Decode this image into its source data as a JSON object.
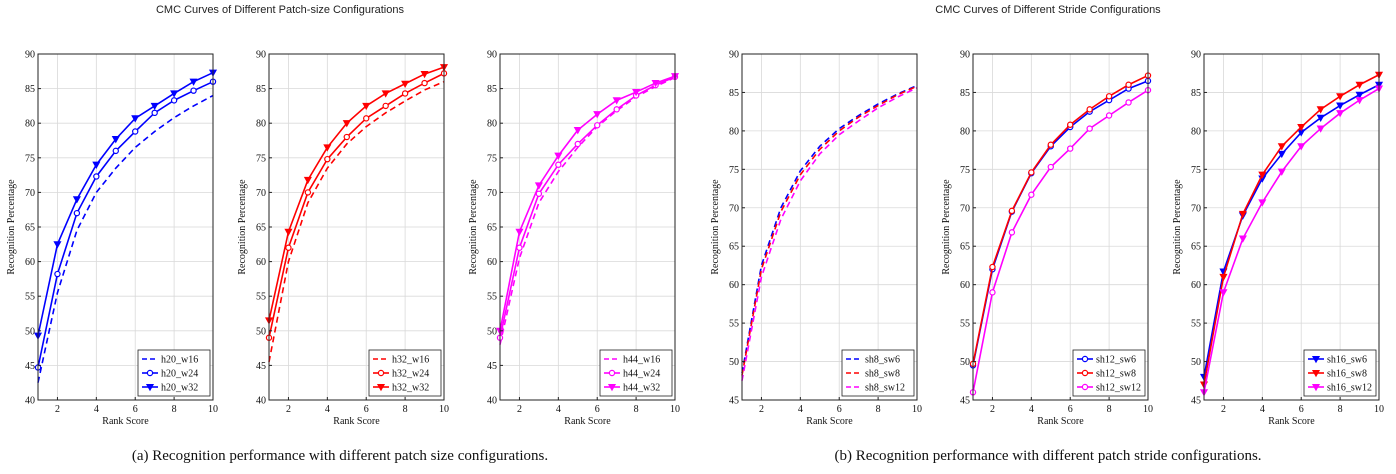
{
  "titles": {
    "left": "CMC Curves of Different Patch-size Configurations",
    "right": "CMC Curves of Different Stride Configurations"
  },
  "captions": {
    "left": "(a) Recognition performance with different patch size configurations.",
    "right": "(b) Recognition performance with different patch stride configurations."
  },
  "chart_data": [
    {
      "type": "line",
      "xlabel": "Rank Score",
      "ylabel": "Recognition Percentage",
      "xlim": [
        1,
        10
      ],
      "ylim": [
        40,
        90
      ],
      "xticks": [
        2,
        4,
        6,
        8,
        10
      ],
      "yticks": [
        40,
        45,
        50,
        55,
        60,
        65,
        70,
        75,
        80,
        85,
        90
      ],
      "grid": true,
      "legend": "bottom-right",
      "x": [
        1,
        2,
        3,
        4,
        5,
        6,
        7,
        8,
        9,
        10
      ],
      "series": [
        {
          "name": "h20_w16",
          "color": "#0000ff",
          "dash": true,
          "marker": "none",
          "values": [
            42.5,
            55.5,
            64.5,
            70.0,
            73.5,
            76.5,
            78.8,
            80.8,
            82.5,
            84.0
          ]
        },
        {
          "name": "h20_w24",
          "color": "#0000ff",
          "dash": false,
          "marker": "circle",
          "values": [
            44.7,
            58.2,
            67.0,
            72.3,
            76.0,
            78.8,
            81.5,
            83.3,
            84.7,
            86.0
          ]
        },
        {
          "name": "h20_w32",
          "color": "#0000ff",
          "dash": false,
          "marker": "triangle",
          "values": [
            49.3,
            62.5,
            69.0,
            74.0,
            77.7,
            80.7,
            82.5,
            84.3,
            86.0,
            87.3
          ]
        }
      ]
    },
    {
      "type": "line",
      "xlabel": "Rank Score",
      "ylabel": "Recognition Percentage",
      "xlim": [
        1,
        10
      ],
      "ylim": [
        40,
        90
      ],
      "xticks": [
        2,
        4,
        6,
        8,
        10
      ],
      "yticks": [
        40,
        45,
        50,
        55,
        60,
        65,
        70,
        75,
        80,
        85,
        90
      ],
      "grid": true,
      "legend": "bottom-right",
      "x": [
        1,
        2,
        3,
        4,
        5,
        6,
        7,
        8,
        9,
        10
      ],
      "series": [
        {
          "name": "h32_w16",
          "color": "#ff0000",
          "dash": true,
          "marker": "none",
          "values": [
            45.5,
            60.0,
            68.5,
            73.5,
            77.0,
            79.5,
            81.5,
            83.2,
            84.8,
            86.0
          ]
        },
        {
          "name": "h32_w24",
          "color": "#ff0000",
          "dash": false,
          "marker": "circle",
          "values": [
            49.0,
            62.0,
            70.0,
            74.8,
            78.0,
            80.7,
            82.5,
            84.3,
            85.8,
            87.2
          ]
        },
        {
          "name": "h32_w32",
          "color": "#ff0000",
          "dash": false,
          "marker": "triangle",
          "values": [
            51.5,
            64.3,
            71.8,
            76.5,
            80.0,
            82.5,
            84.3,
            85.7,
            87.1,
            88.1
          ]
        }
      ]
    },
    {
      "type": "line",
      "xlabel": "Rank Score",
      "ylabel": "Recognition Percentage",
      "xlim": [
        1,
        10
      ],
      "ylim": [
        40,
        90
      ],
      "xticks": [
        2,
        4,
        6,
        8,
        10
      ],
      "yticks": [
        40,
        45,
        50,
        55,
        60,
        65,
        70,
        75,
        80,
        85,
        90
      ],
      "grid": true,
      "legend": "bottom-right",
      "x": [
        1,
        2,
        3,
        4,
        5,
        6,
        7,
        8,
        9,
        10
      ],
      "series": [
        {
          "name": "h44_w16",
          "color": "#ff00ff",
          "dash": true,
          "marker": "none",
          "values": [
            48.0,
            60.5,
            68.5,
            73.0,
            76.5,
            79.5,
            81.8,
            83.8,
            85.3,
            86.6
          ]
        },
        {
          "name": "h44_w24",
          "color": "#ff00ff",
          "dash": false,
          "marker": "circle",
          "values": [
            49.0,
            62.0,
            69.8,
            74.0,
            77.0,
            79.7,
            82.0,
            84.0,
            85.5,
            86.7
          ]
        },
        {
          "name": "h44_w32",
          "color": "#ff00ff",
          "dash": false,
          "marker": "triangle",
          "values": [
            50.0,
            64.3,
            71.0,
            75.3,
            79.0,
            81.3,
            83.3,
            84.5,
            85.8,
            86.8
          ]
        }
      ]
    },
    {
      "type": "line",
      "xlabel": "Rank Score",
      "ylabel": "Recognition Percentage",
      "xlim": [
        1,
        10
      ],
      "ylim": [
        45,
        90
      ],
      "xticks": [
        2,
        4,
        6,
        8,
        10
      ],
      "yticks": [
        45,
        50,
        55,
        60,
        65,
        70,
        75,
        80,
        85,
        90
      ],
      "grid": true,
      "legend": "bottom-right",
      "x": [
        1,
        2,
        3,
        4,
        5,
        6,
        7,
        8,
        9,
        10
      ],
      "series": [
        {
          "name": "sh8_sw6",
          "color": "#0000ff",
          "dash": true,
          "marker": "none",
          "values": [
            48.5,
            62.5,
            70.0,
            74.8,
            78.0,
            80.3,
            82.0,
            83.5,
            84.8,
            85.9
          ]
        },
        {
          "name": "sh8_sw8",
          "color": "#ff0000",
          "dash": true,
          "marker": "none",
          "values": [
            48.2,
            62.0,
            69.5,
            74.3,
            77.6,
            80.0,
            81.8,
            83.3,
            84.7,
            85.8
          ]
        },
        {
          "name": "sh8_sw12",
          "color": "#ff00ff",
          "dash": true,
          "marker": "none",
          "values": [
            47.5,
            61.0,
            68.5,
            73.5,
            77.0,
            79.5,
            81.3,
            83.0,
            84.4,
            85.6
          ]
        }
      ]
    },
    {
      "type": "line",
      "xlabel": "Rank Score",
      "ylabel": "Recognition Percentage",
      "xlim": [
        1,
        10
      ],
      "ylim": [
        45,
        90
      ],
      "xticks": [
        2,
        4,
        6,
        8,
        10
      ],
      "yticks": [
        45,
        50,
        55,
        60,
        65,
        70,
        75,
        80,
        85,
        90
      ],
      "grid": true,
      "legend": "bottom-right",
      "x": [
        1,
        2,
        3,
        4,
        5,
        6,
        7,
        8,
        9,
        10
      ],
      "series": [
        {
          "name": "sh12_sw6",
          "color": "#0000ff",
          "dash": false,
          "marker": "circle",
          "values": [
            49.5,
            62.0,
            69.5,
            74.5,
            78.0,
            80.5,
            82.5,
            84.0,
            85.5,
            86.5
          ]
        },
        {
          "name": "sh12_sw8",
          "color": "#ff0000",
          "dash": false,
          "marker": "circle",
          "values": [
            49.7,
            62.3,
            69.6,
            74.6,
            78.2,
            80.8,
            82.8,
            84.5,
            86.0,
            87.2
          ]
        },
        {
          "name": "sh12_sw12",
          "color": "#ff00ff",
          "dash": false,
          "marker": "circle",
          "values": [
            46.0,
            59.0,
            66.8,
            71.7,
            75.3,
            77.7,
            80.3,
            82.0,
            83.7,
            85.3
          ]
        }
      ]
    },
    {
      "type": "line",
      "xlabel": "Rank Score",
      "ylabel": "Recognition Percentage",
      "xlim": [
        1,
        10
      ],
      "ylim": [
        45,
        90
      ],
      "xticks": [
        2,
        4,
        6,
        8,
        10
      ],
      "yticks": [
        45,
        50,
        55,
        60,
        65,
        70,
        75,
        80,
        85,
        90
      ],
      "grid": true,
      "legend": "bottom-right",
      "x": [
        1,
        2,
        3,
        4,
        5,
        6,
        7,
        8,
        9,
        10
      ],
      "series": [
        {
          "name": "sh16_sw6",
          "color": "#0000ff",
          "dash": false,
          "marker": "triangle",
          "values": [
            48.0,
            61.7,
            69.0,
            73.8,
            77.0,
            79.8,
            81.7,
            83.3,
            84.7,
            86.0
          ]
        },
        {
          "name": "sh16_sw8",
          "color": "#ff0000",
          "dash": false,
          "marker": "triangle",
          "values": [
            47.0,
            61.0,
            69.2,
            74.3,
            78.0,
            80.5,
            82.8,
            84.5,
            86.0,
            87.3
          ]
        },
        {
          "name": "sh16_sw12",
          "color": "#ff00ff",
          "dash": false,
          "marker": "triangle",
          "values": [
            46.0,
            59.0,
            66.0,
            70.7,
            74.7,
            78.0,
            80.3,
            82.3,
            84.0,
            85.5
          ]
        }
      ]
    }
  ]
}
